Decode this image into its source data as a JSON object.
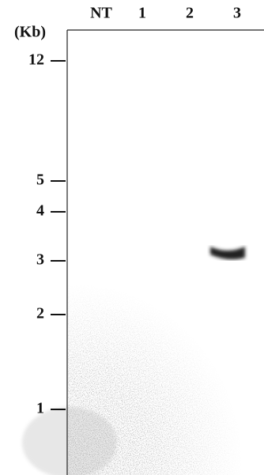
{
  "unit_label": "(Kb)",
  "lanes": [
    "NT",
    "1",
    "2",
    "3"
  ],
  "markers": [
    12,
    5,
    4,
    3,
    2,
    1
  ]
}
